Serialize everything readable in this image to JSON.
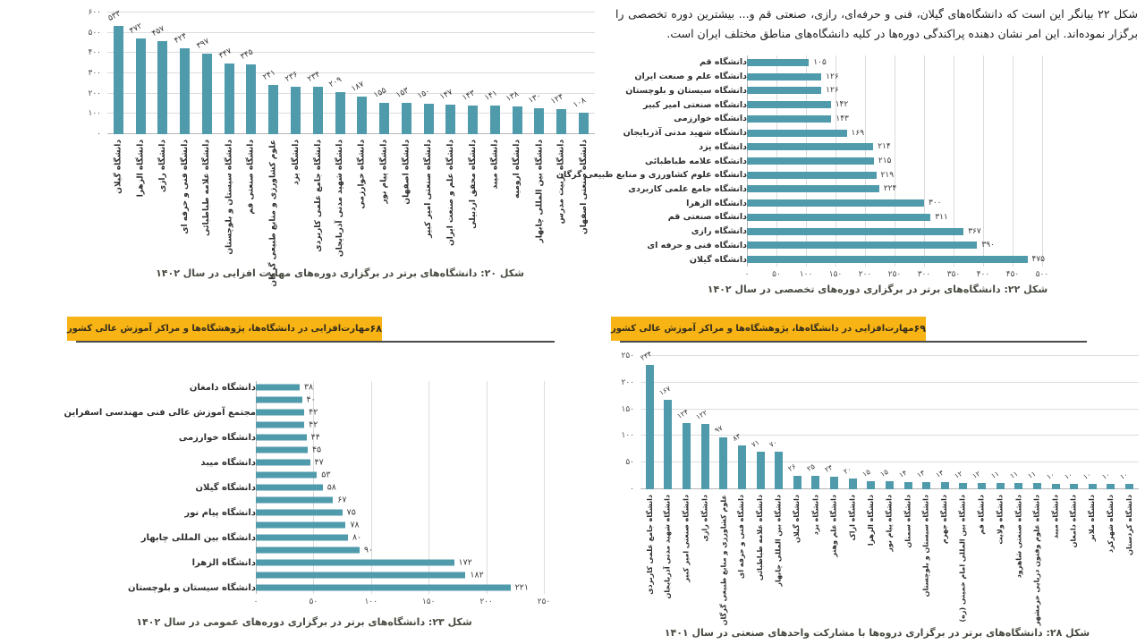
{
  "intro": {
    "text": "شکل ۲۲ بیانگر این است که دانشگاه‌های گیلان، فنی و حرفه‌ای، رازی، صنعتی قم و... بیشترین دوره تخصصی را برگزار نموده‌اند. این امر نشان دهنده پراکندگی دوره‌ها در کلیه دانشگاه‌های مناطق مختلف ایران است."
  },
  "banner": {
    "title": "مهارت‌افزایی در دانشگاه‌ها، پژوهشگاه‌ها و مراکز آموزش عالی کشور",
    "left_page_number": "۶۸",
    "right_page_number": "۶۹"
  },
  "colors": {
    "bar": "#4f9aab",
    "banner": "#f8b314",
    "grid": "#dcdcdc",
    "caption_text": "#474c41"
  },
  "chart_data": [
    {
      "id": "fig20",
      "type": "bar",
      "orientation": "vertical",
      "caption": "شکل ۲۰: دانشگاه‌های برتر در برگزاری دوره‌های مهارت افزایی در سال ۱۴۰۲",
      "categories": [
        "دانشگاه گیلان",
        "دانشگاه الزهرا",
        "دانشگاه رازی",
        "دانشگاه فنی و حرفه ای",
        "دانشگاه علامه طباطبائی",
        "دانشگاه سیستان و بلوچستان",
        "دانشگاه صنعتی قم",
        "علوم کشاورزی و منابع طبیعی گرگان",
        "دانشگاه یزد",
        "دانشگاه جامع علمی کاربردی",
        "دانشگاه شهید مدنی آذربایجان",
        "دانشگاه خوارزمی",
        "دانشگاه پیام نور",
        "دانشگاه اصفهان",
        "دانشگاه صنعتی امیر کبیر",
        "دانشگاه علم و صنعت ایران",
        "دانشگاه محقق اردبیلی",
        "دانشگاه میبد",
        "دانشگاه ارومیه",
        "دانشگاه بین المللی چابهار",
        "دانشگاه تربیت مدرس",
        "دانشگاه صنعتی اصفهان"
      ],
      "values": [
        533,
        472,
        457,
        424,
        397,
        347,
        345,
        241,
        236,
        234,
        209,
        187,
        155,
        153,
        150,
        147,
        143,
        141,
        138,
        130,
        124,
        108
      ],
      "value_labels": [
        "۵۳۳",
        "۴۷۲",
        "۴۵۷",
        "۴۲۴",
        "۳۹۷",
        "۳۴۷",
        "۳۴۵",
        "۲۴۱",
        "۲۳۶",
        "۲۳۴",
        "۲۰۹",
        "۱۸۷",
        "۱۵۵",
        "۱۵۳",
        "۱۵۰",
        "۱۴۷",
        "۱۴۳",
        "۱۴۱",
        "۱۳۸",
        "۱۳۰",
        "۱۲۴",
        "۱۰۸"
      ],
      "ylim": [
        0,
        600
      ],
      "yticks": [
        0,
        100,
        200,
        300,
        400,
        500,
        600
      ],
      "ytick_labels": [
        "۰",
        "۱۰۰",
        "۲۰۰",
        "۳۰۰",
        "۴۰۰",
        "۵۰۰",
        "۶۰۰"
      ],
      "grid": true,
      "legend": false
    },
    {
      "id": "fig22",
      "type": "bar",
      "orientation": "horizontal",
      "caption": "شکل ۲۲: دانشگاه‌های برتر در برگزاری دوره‌های تخصصی در سال ۱۴۰۲",
      "categories": [
        "دانشگاه قم",
        "دانشگاه علم و صنعت ایران",
        "دانشگاه سیستان و بلوچستان",
        "دانشگاه صنعتی امیر کبیر",
        "دانشگاه خوارزمی",
        "دانشگاه شهید مدنی آذربایجان",
        "دانشگاه یزد",
        "دانشگاه علامه طباطبائی",
        "دانشگاه علوم کشاورزی و منابع طبیعی گرگان",
        "دانشگاه جامع علمی کاربردی",
        "دانشگاه الزهرا",
        "دانشگاه صنعتی قم",
        "دانشگاه رازی",
        "دانشگاه فنی و حرفه ای",
        "دانشگاه گیلان"
      ],
      "values": [
        105,
        126,
        126,
        142,
        143,
        169,
        214,
        215,
        219,
        224,
        300,
        311,
        367,
        390,
        475
      ],
      "value_labels": [
        "۱۰۵",
        "۱۲۶",
        "۱۲۶",
        "۱۴۲",
        "۱۴۳",
        "۱۶۹",
        "۲۱۴",
        "۲۱۵",
        "۲۱۹",
        "۲۲۴",
        "۳۰۰",
        "۳۱۱",
        "۳۶۷",
        "۳۹۰",
        "۴۷۵"
      ],
      "xlim": [
        0,
        500
      ],
      "xticks": [
        0,
        50,
        100,
        150,
        200,
        250,
        300,
        350,
        400,
        450,
        500
      ],
      "xtick_labels": [
        "۰",
        "۵۰",
        "۱۰۰",
        "۱۵۰",
        "۲۰۰",
        "۲۵۰",
        "۳۰۰",
        "۳۵۰",
        "۴۰۰",
        "۴۵۰",
        "۵۰۰"
      ],
      "grid": true,
      "legend": false
    },
    {
      "id": "fig23",
      "type": "bar",
      "orientation": "horizontal",
      "caption": "شکل ۲۳: دانشگاه‌های برتر در برگزاری دوره‌های عمومی در سال ۱۴۰۲",
      "categories": [
        "دانشگاه دامغان",
        "",
        "مجتمع آموزش عالی فنی مهندسی اسفراین",
        "",
        "دانشگاه خوارزمی",
        "",
        "دانشگاه میبد",
        "",
        "دانشگاه گیلان",
        "",
        "دانشگاه پیام نور",
        "",
        "دانشگاه بین المللی چابهار",
        "",
        "دانشگاه الزهرا",
        "",
        "دانشگاه سیستان و بلوچستان"
      ],
      "values": [
        38,
        40,
        42,
        42,
        44,
        45,
        47,
        53,
        58,
        67,
        75,
        78,
        80,
        90,
        172,
        182,
        221
      ],
      "value_labels": [
        "۳۸",
        "۴۰",
        "۴۲",
        "۴۲",
        "۴۴",
        "۴۵",
        "۴۷",
        "۵۳",
        "۵۸",
        "۶۷",
        "۷۵",
        "۷۸",
        "۸۰",
        "۹۰",
        "۱۷۲",
        "۱۸۲",
        "۲۲۱"
      ],
      "xlim": [
        0,
        250
      ],
      "xticks": [
        0,
        50,
        100,
        150,
        200,
        250
      ],
      "xtick_labels": [
        "۰",
        "۵۰",
        "۱۰۰",
        "۱۵۰",
        "۲۰۰",
        "۲۵۰"
      ],
      "grid": true,
      "legend": false
    },
    {
      "id": "fig28",
      "type": "bar",
      "orientation": "vertical",
      "caption": "شکل ۲۸: دانشگاه‌های برتر در برگزاری دروه‌ها با مشارکت واحدهای صنعتی در سال ۱۴۰۱",
      "categories": [
        "دانشگاه جامع علمی کاربردی",
        "دانشگاه شهید مدنی آذربایجان",
        "دانشگاه صنعتی امیر کبیر",
        "دانشگاه رازی",
        "علوم کشاورزی و منابع طبیعی گرگان",
        "دانشگاه فنی و حرفه ای",
        "دانشگاه علامه طباطبائی",
        "دانشگاه بین المللی چابهار",
        "دانشگاه گیلان",
        "دانشگاه یزد",
        "دانشگاه علم وهنر",
        "دانشگاه اراک",
        "دانشگاه الزهرا",
        "دانشگاه پیام نور",
        "دانشگاه سمنان",
        "دانشگاه سیستان و بلوچستان",
        "دانشگاه جهرم",
        "دانشگاه بین المللی امام خمینی (ره)",
        "دانشگاه قم",
        "دانشگاه ولایت",
        "دانشگاه صنعتی شاهرود",
        "دانشگاه علوم وفنون دریایی خرمشهر",
        "دانشگاه میبد",
        "دانشگاه دامغان",
        "دانشگاه ملایر",
        "دانشگاه شهرکرد",
        "دانشگاه کردستان"
      ],
      "values": [
        234,
        167,
        124,
        122,
        97,
        83,
        71,
        70,
        26,
        25,
        23,
        20,
        15,
        15,
        14,
        13,
        13,
        12,
        12,
        11,
        11,
        11,
        10,
        10,
        10,
        10,
        10
      ],
      "value_labels": [
        "۲۳۴",
        "۱۶۷",
        "۱۲۴",
        "۱۲۲",
        "۹۷",
        "۸۳",
        "۷۱",
        "۷۰",
        "۲۶",
        "۲۵",
        "۲۳",
        "۲۰",
        "۱۵",
        "۱۵",
        "۱۴",
        "۱۳",
        "۱۳",
        "۱۲",
        "۱۲",
        "۱۱",
        "۱۱",
        "۱۱",
        "۱۰",
        "۱۰",
        "۱۰",
        "۱۰",
        "۱۰"
      ],
      "ylim": [
        0,
        250
      ],
      "yticks": [
        0,
        50,
        100,
        150,
        200,
        250
      ],
      "ytick_labels": [
        "۰",
        "۵۰",
        "۱۰۰",
        "۱۵۰",
        "۲۰۰",
        "۲۵۰"
      ],
      "grid": true,
      "legend": false
    }
  ]
}
